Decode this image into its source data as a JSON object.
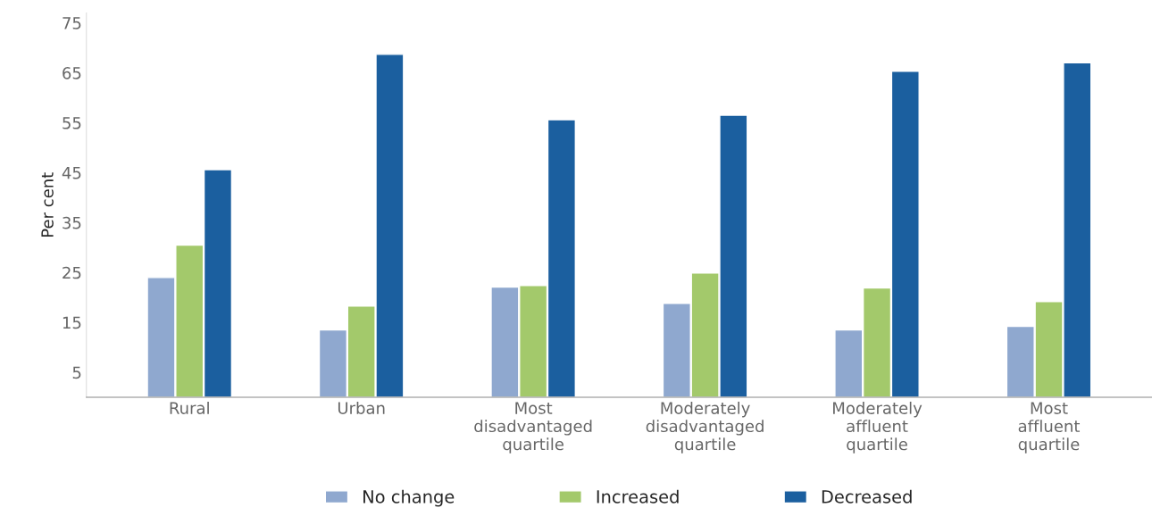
{
  "chart_data": {
    "type": "bar",
    "ylabel": "Per cent",
    "categories": [
      "Rural",
      "Urban",
      "Most\ndisadvantaged\nquartile",
      "Moderately\ndisadvantaged\nquartile",
      "Moderately\naffluent\nquartile",
      "Most\naffluent\nquartile"
    ],
    "series": [
      {
        "name": "No change",
        "color": "#8fa8cf",
        "values": [
          24.0,
          13.5,
          22.1,
          18.8,
          13.5,
          14.2
        ]
      },
      {
        "name": "Increased",
        "color": "#a3c96b",
        "values": [
          30.5,
          18.3,
          22.4,
          24.9,
          21.9,
          19.2
        ]
      },
      {
        "name": "Decreased",
        "color": "#1b5f9f",
        "values": [
          45.6,
          68.7,
          55.6,
          56.5,
          65.3,
          67.0
        ]
      }
    ],
    "ylim": [
      0,
      77
    ],
    "yticks": [
      5,
      15,
      25,
      35,
      45,
      55,
      65,
      75
    ],
    "grid": false,
    "legend": "bottom"
  }
}
